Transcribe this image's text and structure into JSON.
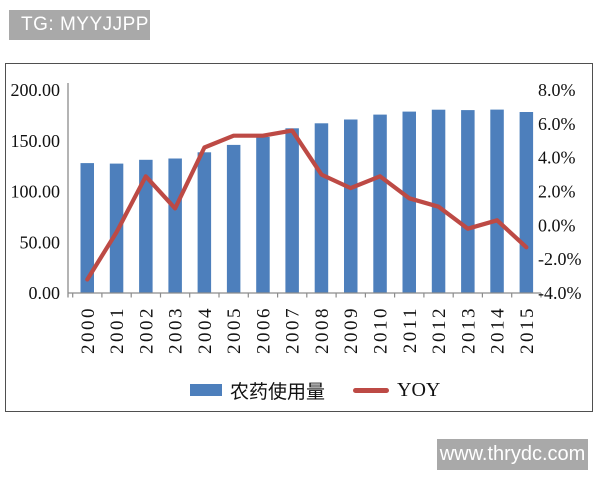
{
  "header": {
    "tag_label": "TG: MYYJJPP",
    "bg_color": "#a9a9a9"
  },
  "footer": {
    "watermark": "www.thrydc.com",
    "bg_color": "#a9a9a9"
  },
  "legend": {
    "bars_label": "农药使用量",
    "line_label": "YOY"
  },
  "colors": {
    "bar": "#4d7fbc",
    "line": "#bd4a45",
    "axis": "#8c8c8c",
    "frame": "#4f4f4f"
  },
  "chart_data": {
    "type": "bar",
    "subtype": "bar+line-combo",
    "title": "",
    "categories": [
      "2000",
      "2001",
      "2002",
      "2003",
      "2004",
      "2005",
      "2006",
      "2007",
      "2008",
      "2009",
      "2010",
      "2011",
      "2012",
      "2013",
      "2014",
      "2015"
    ],
    "series": [
      {
        "name": "农药使用量",
        "type": "bar",
        "axis": "left",
        "color": "#4d7fbc",
        "values": [
          128.0,
          127.5,
          131.2,
          132.5,
          138.6,
          145.9,
          153.7,
          162.3,
          167.2,
          170.9,
          175.8,
          178.7,
          180.6,
          180.2,
          180.7,
          178.3
        ]
      },
      {
        "name": "YOY",
        "type": "line",
        "axis": "right",
        "color": "#bd4a45",
        "values": [
          -3.2,
          -0.4,
          2.9,
          1.0,
          4.6,
          5.3,
          5.3,
          5.6,
          3.0,
          2.2,
          2.9,
          1.6,
          1.1,
          -0.2,
          0.3,
          -1.3
        ]
      }
    ],
    "left_axis": {
      "min": 0,
      "max": 200,
      "tick_labels": [
        "200.00",
        "150.00",
        "100.00",
        "50.00",
        "0.00"
      ]
    },
    "right_axis": {
      "min": -4,
      "max": 8,
      "tick_labels": [
        "8.0%",
        "6.0%",
        "4.0%",
        "2.0%",
        "0.0%",
        "-2.0%",
        "-4.0%"
      ]
    },
    "grid": false,
    "legend_position": "bottom"
  }
}
